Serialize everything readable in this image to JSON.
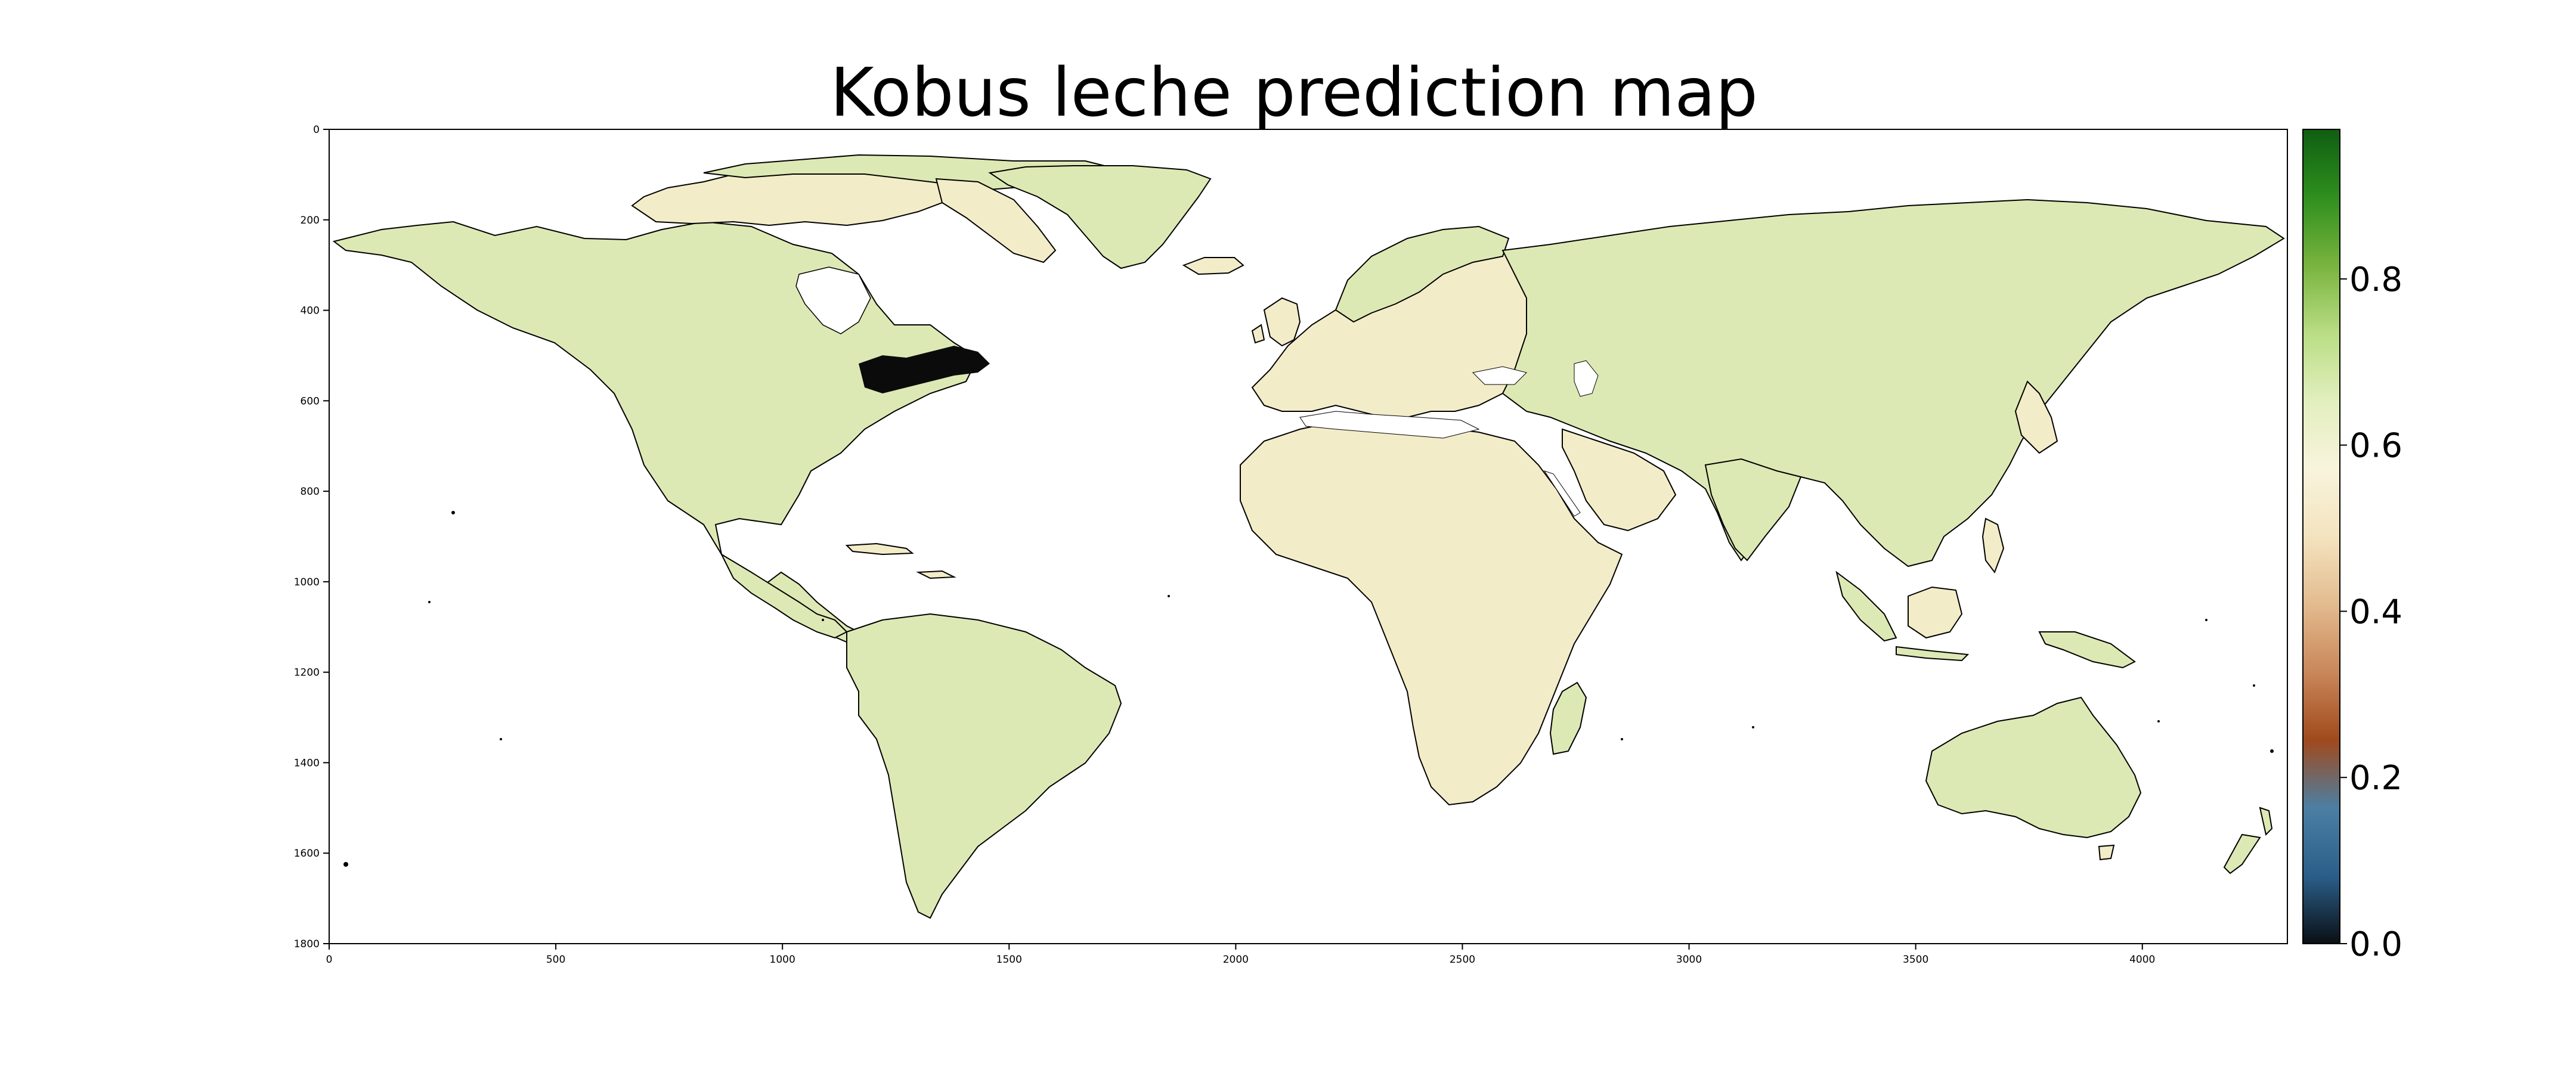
{
  "title": "Kobus leche prediction map",
  "map": {
    "y_ticks": [
      "0",
      "200",
      "400",
      "600",
      "800",
      "1000",
      "1200",
      "1400",
      "1600",
      "1800"
    ],
    "x_ticks": [
      "0",
      "500",
      "1000",
      "1500",
      "2000",
      "2500",
      "3000",
      "3500",
      "4000"
    ],
    "land_color_low": "#f3ecc8",
    "land_color_high": "#dde9b4",
    "coast_color": "#000000"
  },
  "colorbar": {
    "ticks": [
      "0.0",
      "0.2",
      "0.4",
      "0.6",
      "0.8"
    ],
    "tick_values": [
      0.0,
      0.2,
      0.4,
      0.6,
      0.8
    ],
    "range": [
      0.0,
      0.98
    ],
    "colors": [
      "#0a0f14",
      "#2b5f8a",
      "#4c7fa3",
      "#a04a1c",
      "#c9875a",
      "#e3bb8f",
      "#f4e3bf",
      "#f8f4dc",
      "#e2efbe",
      "#b9dd84",
      "#79b33e",
      "#2f8f1e",
      "#0f5e12"
    ]
  }
}
